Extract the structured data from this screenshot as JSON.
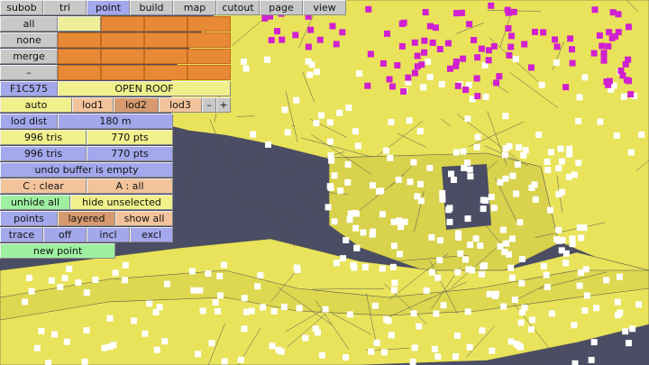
{
  "menu": [
    "subob",
    "tri",
    "point",
    "build",
    "map",
    "cutout",
    "page",
    "view"
  ],
  "menu_active": "point",
  "side": {
    "all": "all",
    "none": "none",
    "merge": "merge",
    "dash": "–"
  },
  "color_code": "F1C575",
  "material_name": "OPEN ROOF",
  "lod": {
    "auto": "auto",
    "lod1": "lod1",
    "lod2": "lod2",
    "lod3": "lod3",
    "minus": "–",
    "plus": "+"
  },
  "lod_dist": {
    "label": "lod dist",
    "value": "180 m"
  },
  "stats": [
    {
      "tris": "996 tris",
      "pts": "770 pts"
    },
    {
      "tris": "996 tris",
      "pts": "770 pts"
    }
  ],
  "undo": "undo buffer is empty",
  "clear": "C : clear",
  "select_all": "A : all",
  "unhide_all": "unhide all",
  "hide_unselected": "hide unselected",
  "points_row": {
    "points": "points",
    "layered": "layered",
    "show_all": "show all"
  },
  "trace_row": {
    "trace": "trace",
    "off": "off",
    "incl": "incl",
    "excl": "excl"
  },
  "new_point": "new point",
  "colors": {
    "mesh": "#e8e35a",
    "background": "#4a4d63",
    "point": "#ffffff",
    "selected_point": "#d020d0"
  }
}
